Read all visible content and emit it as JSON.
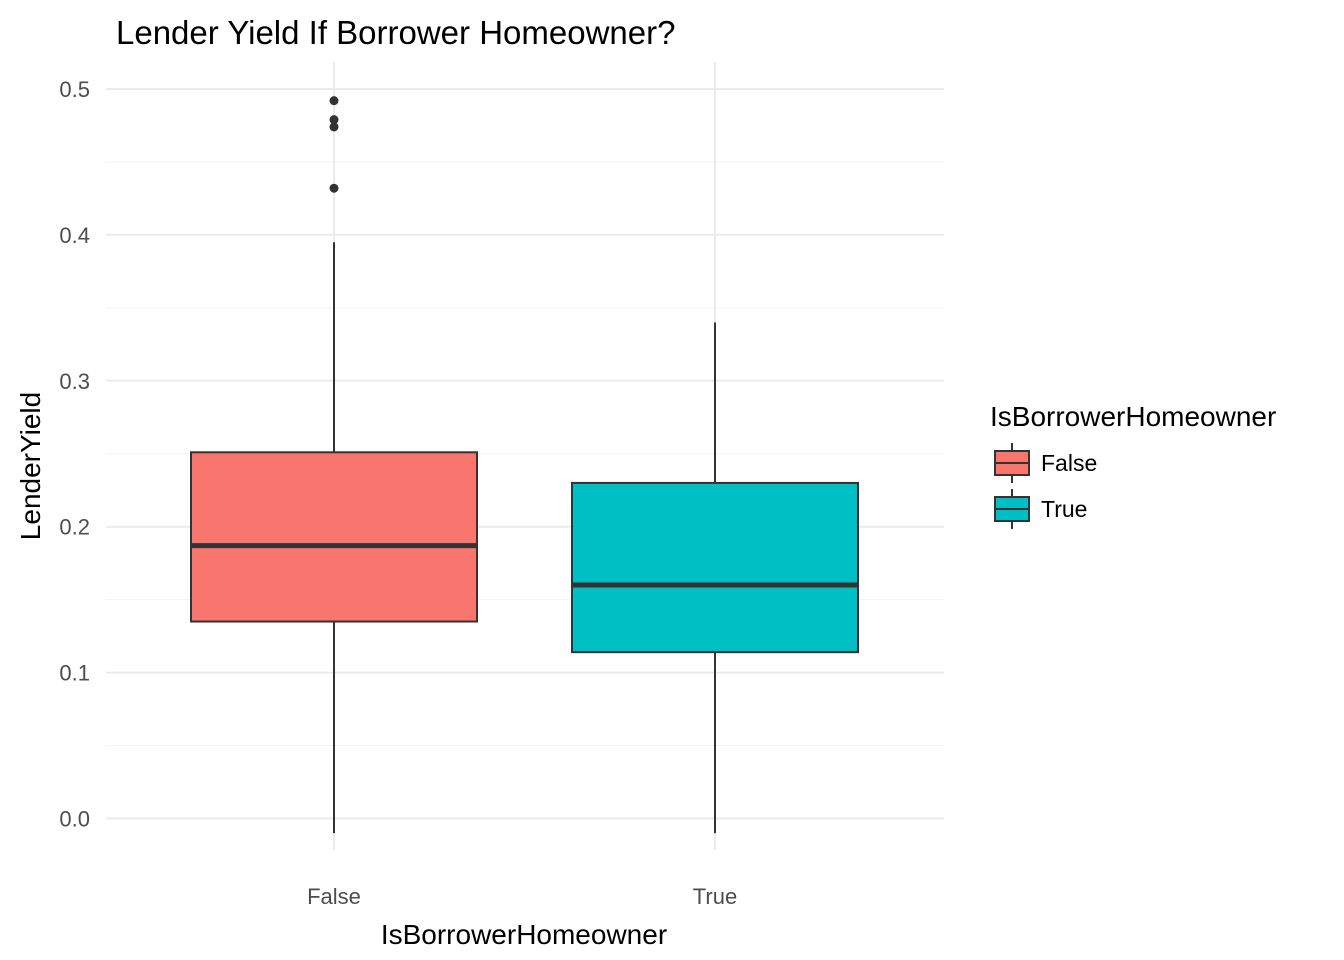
{
  "chart_data": {
    "type": "box",
    "title": "Lender Yield If Borrower Homeowner?",
    "xlabel": "IsBorrowerHomeowner",
    "ylabel": "LenderYield",
    "ylim": [
      -0.01,
      0.51
    ],
    "y_ticks": [
      "0.0",
      "0.1",
      "0.2",
      "0.3",
      "0.4",
      "0.5"
    ],
    "y_tick_values": [
      0.0,
      0.1,
      0.2,
      0.3,
      0.4,
      0.5
    ],
    "categories": [
      "False",
      "True"
    ],
    "grid": true,
    "legend": {
      "title": "IsBorrowerHomeowner",
      "placement": "right",
      "entries": [
        "False",
        "True"
      ]
    },
    "series": [
      {
        "name": "False",
        "color": "#f8766d",
        "whisker_low": -0.01,
        "q1": 0.135,
        "median": 0.187,
        "q3": 0.251,
        "whisker_high": 0.395,
        "outliers": [
          0.432,
          0.474,
          0.479,
          0.492
        ]
      },
      {
        "name": "True",
        "color": "#00bfc4",
        "whisker_low": -0.01,
        "q1": 0.114,
        "median": 0.16,
        "q3": 0.23,
        "whisker_high": 0.34,
        "outliers": []
      }
    ]
  }
}
